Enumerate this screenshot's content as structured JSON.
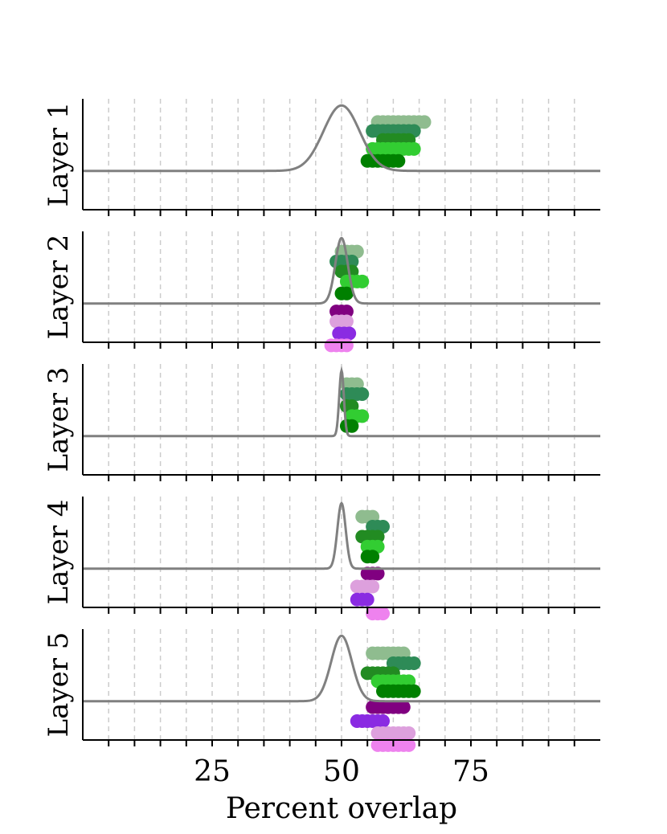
{
  "chart_data": {
    "type": "scatter",
    "xlabel": "Percent overlap",
    "xlim": [
      0,
      100
    ],
    "xticks": [
      25,
      50,
      75
    ],
    "minor_xticks": [
      5,
      10,
      15,
      20,
      25,
      30,
      35,
      40,
      45,
      50,
      55,
      60,
      65,
      70,
      75,
      80,
      85,
      90,
      95
    ],
    "grid": "vertical dashed at minor ticks",
    "colors": {
      "curve": "#808080",
      "grid": "#cccccc",
      "green1": "#008000",
      "green2": "#32cd32",
      "green3": "#228b22",
      "green4": "#2e8b57",
      "green5": "#8fbc8f",
      "purple1": "#800080",
      "purple2": "#dda0dd",
      "purple3": "#8a2be2",
      "purple4": "#ee82ee"
    },
    "panels": [
      {
        "ylabel": "Layer 1",
        "curve": {
          "mu": 50,
          "sigma": 3.5
        },
        "rows": [
          {
            "level": 0.49,
            "color": "green5",
            "x": [
              57,
              58,
              59,
              60,
              61,
              62,
              63,
              64,
              65,
              66
            ]
          },
          {
            "level": 0.4,
            "color": "green4",
            "x": [
              56,
              57,
              58,
              59,
              60,
              61,
              62,
              63,
              64
            ]
          },
          {
            "level": 0.31,
            "color": "green3",
            "x": [
              58,
              59,
              60,
              61,
              62,
              63
            ]
          },
          {
            "level": 0.22,
            "color": "green2",
            "x": [
              56,
              57,
              58,
              59,
              60,
              61,
              62,
              63,
              64
            ]
          },
          {
            "level": 0.1,
            "color": "green1",
            "x": [
              55,
              56,
              57,
              58,
              59,
              60,
              61
            ]
          }
        ]
      },
      {
        "ylabel": "Layer 2",
        "curve": {
          "mu": 50,
          "sigma": 1.2
        },
        "rows": [
          {
            "level": 0.52,
            "color": "green5",
            "x": [
              50,
              51,
              52,
              53
            ]
          },
          {
            "level": 0.42,
            "color": "green4",
            "x": [
              49,
              50,
              51,
              52
            ]
          },
          {
            "level": 0.32,
            "color": "green3",
            "x": [
              50,
              51,
              52
            ]
          },
          {
            "level": 0.22,
            "color": "green2",
            "x": [
              51,
              52,
              53,
              54
            ]
          },
          {
            "level": 0.1,
            "color": "green1",
            "x": [
              50,
              51
            ]
          },
          {
            "level": -0.08,
            "color": "purple1",
            "x": [
              49,
              50,
              51
            ]
          },
          {
            "level": -0.18,
            "color": "purple2",
            "x": [
              49,
              50,
              51
            ]
          },
          {
            "level": -0.3,
            "color": "purple3",
            "x": [
              49.5,
              50.5,
              51.5
            ]
          },
          {
            "level": -0.42,
            "color": "purple4",
            "x": [
              48,
              49,
              50,
              51
            ]
          }
        ]
      },
      {
        "ylabel": "Layer 3",
        "curve": {
          "mu": 50,
          "sigma": 0.45
        },
        "rows": [
          {
            "level": 0.52,
            "color": "green5",
            "x": [
              51,
              52,
              53
            ]
          },
          {
            "level": 0.42,
            "color": "green4",
            "x": [
              51,
              52,
              53,
              54
            ]
          },
          {
            "level": 0.3,
            "color": "green3",
            "x": [
              51,
              52
            ]
          },
          {
            "level": 0.2,
            "color": "green2",
            "x": [
              52,
              53,
              54
            ]
          },
          {
            "level": 0.1,
            "color": "green1",
            "x": [
              51,
              52
            ]
          }
        ]
      },
      {
        "ylabel": "Layer 4",
        "curve": {
          "mu": 50,
          "sigma": 0.8
        },
        "rows": [
          {
            "level": 0.52,
            "color": "green5",
            "x": [
              54,
              55,
              56
            ]
          },
          {
            "level": 0.42,
            "color": "green4",
            "x": [
              56,
              57,
              58
            ]
          },
          {
            "level": 0.32,
            "color": "green3",
            "x": [
              54,
              55,
              56,
              57
            ]
          },
          {
            "level": 0.22,
            "color": "green2",
            "x": [
              55,
              56,
              57
            ]
          },
          {
            "level": 0.12,
            "color": "green1",
            "x": [
              55,
              56
            ]
          },
          {
            "level": -0.05,
            "color": "purple1",
            "x": [
              55,
              56,
              57
            ]
          },
          {
            "level": -0.18,
            "color": "purple2",
            "x": [
              53,
              54,
              55,
              56
            ]
          },
          {
            "level": -0.31,
            "color": "purple3",
            "x": [
              53,
              54,
              55
            ]
          },
          {
            "level": -0.45,
            "color": "purple4",
            "x": [
              56,
              57,
              58
            ]
          }
        ]
      },
      {
        "ylabel": "Layer 5",
        "curve": {
          "mu": 50,
          "sigma": 2.0
        },
        "rows": [
          {
            "level": 0.48,
            "color": "green5",
            "x": [
              56,
              57,
              58,
              59,
              60,
              61,
              62
            ]
          },
          {
            "level": 0.38,
            "color": "green4",
            "x": [
              60,
              61,
              62,
              63,
              64
            ]
          },
          {
            "level": 0.28,
            "color": "green3",
            "x": [
              55,
              56,
              57,
              58,
              59,
              60
            ]
          },
          {
            "level": 0.2,
            "color": "green2",
            "x": [
              57,
              58,
              59,
              60,
              61,
              62,
              63
            ]
          },
          {
            "level": 0.1,
            "color": "green1",
            "x": [
              58,
              59,
              60,
              61,
              62,
              63,
              64
            ]
          },
          {
            "level": -0.06,
            "color": "purple1",
            "x": [
              56,
              57,
              58,
              59,
              60,
              61,
              62
            ]
          },
          {
            "level": -0.2,
            "color": "purple3",
            "x": [
              53,
              54,
              55,
              56,
              57,
              58
            ]
          },
          {
            "level": -0.32,
            "color": "purple2",
            "x": [
              57,
              58,
              59,
              60,
              61,
              62,
              63
            ]
          },
          {
            "level": -0.44,
            "color": "purple4",
            "x": [
              57,
              58,
              59,
              60,
              61,
              62,
              63
            ]
          }
        ]
      }
    ]
  }
}
